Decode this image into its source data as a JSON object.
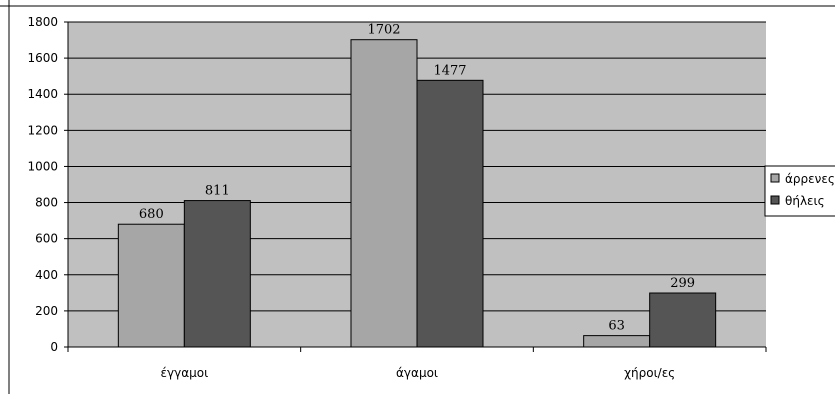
{
  "chart_data": {
    "type": "bar",
    "categories": [
      "έγγαμοι",
      "άγαμοι",
      "χήροι/ες"
    ],
    "series": [
      {
        "name": "άρρενες",
        "values": [
          680,
          1702,
          63
        ],
        "color": "#a6a6a6"
      },
      {
        "name": "θήλεις",
        "values": [
          811,
          1477,
          299
        ],
        "color": "#555555"
      }
    ],
    "ylim": [
      0,
      1800
    ],
    "yticks": [
      0,
      200,
      400,
      600,
      800,
      1000,
      1200,
      1400,
      1600,
      1800
    ],
    "ytick_labels": [
      "0",
      "200",
      "400",
      "600",
      "800",
      "1000",
      "1200",
      "1400",
      "1600",
      "1800"
    ],
    "grid": true,
    "plot_background": "#c0c0c0",
    "legend": {
      "placement": "right"
    },
    "legend_labels": [
      "άρρενες",
      "θήλεις"
    ],
    "data_labels": [
      [
        "680",
        "1702",
        "63"
      ],
      [
        "811",
        "1477",
        "299"
      ]
    ]
  }
}
